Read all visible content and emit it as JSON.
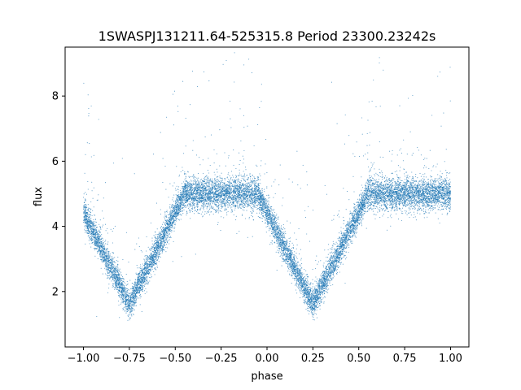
{
  "chart_data": {
    "type": "scatter",
    "title": "1SWASPJ131211.64-525315.8 Period 23300.23242s",
    "xlabel": "phase",
    "ylabel": "flux",
    "xlim": [
      -1.1,
      1.1
    ],
    "ylim": [
      0.3,
      9.5
    ],
    "x_ticks": [
      -1.0,
      -0.75,
      -0.5,
      -0.25,
      0.0,
      0.25,
      0.5,
      0.75,
      1.0
    ],
    "x_tick_labels": [
      "−1.00",
      "−0.75",
      "−0.50",
      "−0.25",
      "0.00",
      "0.25",
      "0.50",
      "0.75",
      "1.00"
    ],
    "y_ticks": [
      2,
      4,
      6,
      8
    ],
    "y_tick_labels": [
      "2",
      "4",
      "6",
      "8"
    ],
    "grid": false,
    "legend": "none",
    "marker_color": "#1f77b4",
    "series": [
      {
        "phase_range": [
          -1.0,
          1.0
        ],
        "baseline_flux": 5.0,
        "baseline_scatter": 0.25,
        "eclipses": [
          {
            "center_phase": -0.75,
            "min_flux": 1.6,
            "half_width": 0.3
          },
          {
            "center_phase": 0.25,
            "min_flux": 1.6,
            "half_width": 0.3
          }
        ],
        "outlier_range": [
          0.8,
          9.2
        ]
      }
    ]
  }
}
